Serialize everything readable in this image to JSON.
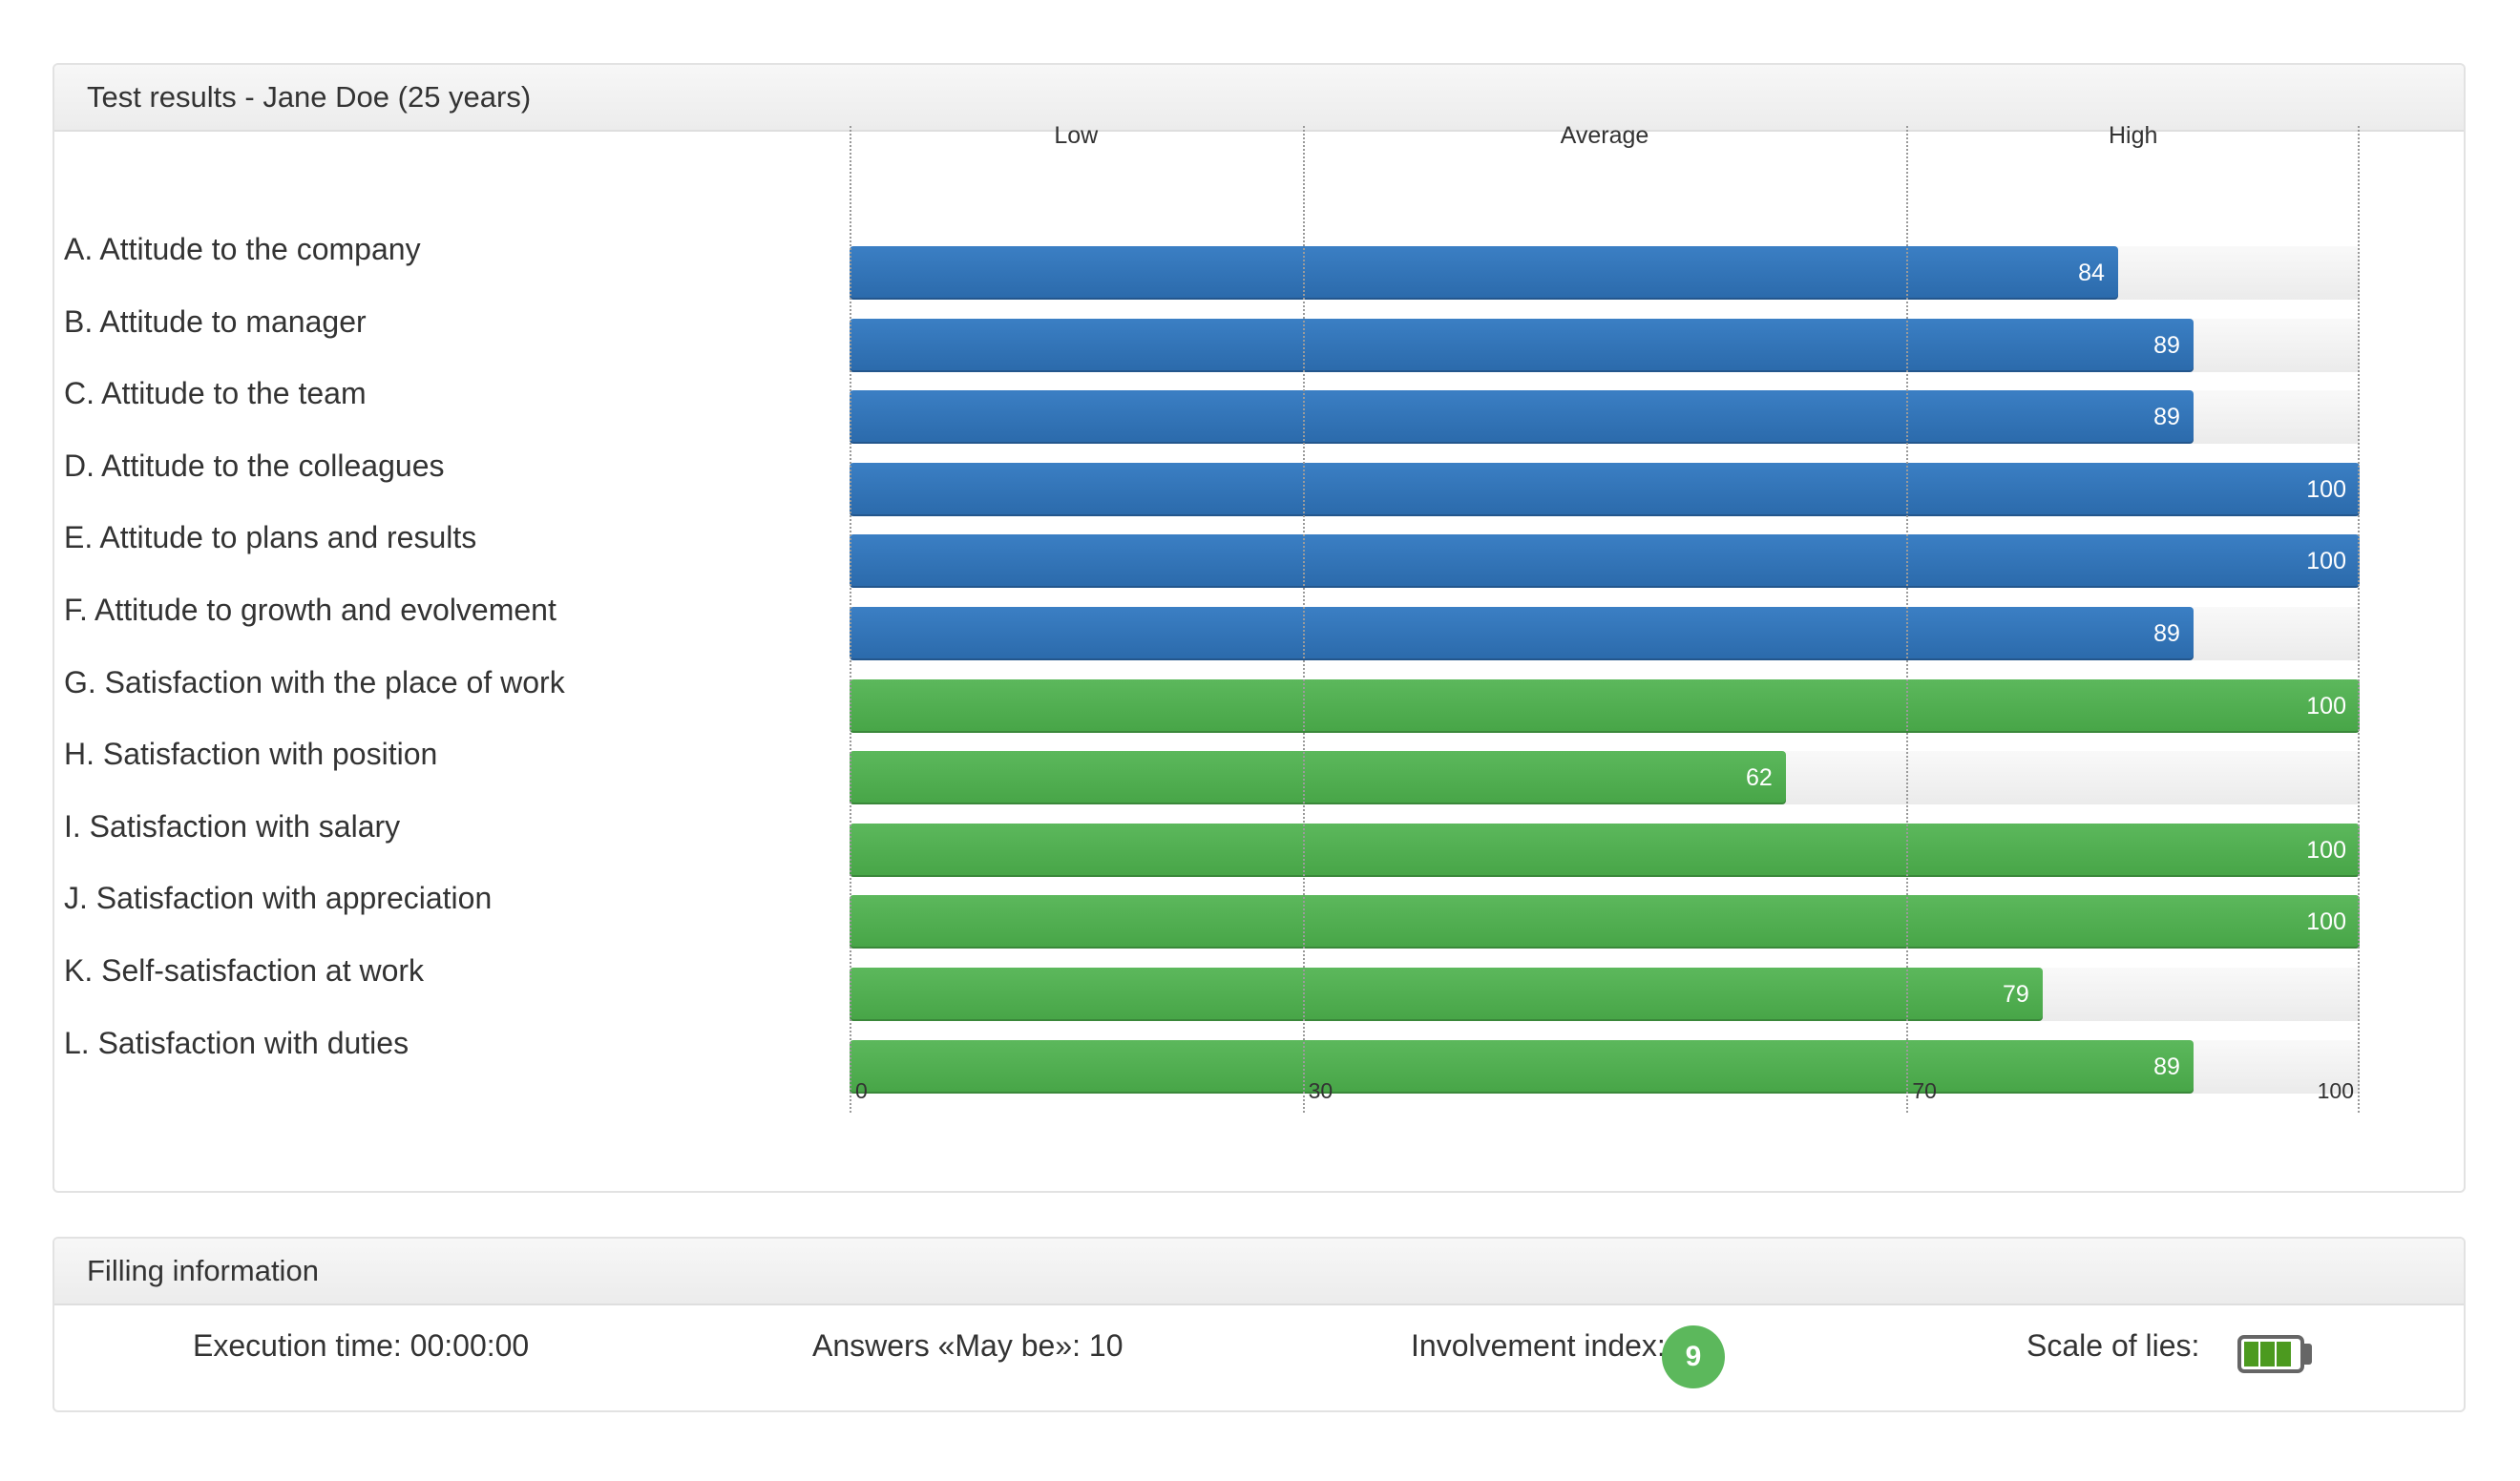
{
  "results": {
    "title": "Test results - Jane Doe (25 years)",
    "zones": [
      "Low",
      "Average",
      "High"
    ],
    "axis_ticks": [
      "0",
      "30",
      "70",
      "100"
    ],
    "rows": [
      {
        "label": "A. Attitude to the company",
        "value": 84,
        "display": "84",
        "color": "blue"
      },
      {
        "label": "B. Attitude to manager",
        "value": 89,
        "display": "89",
        "color": "blue"
      },
      {
        "label": "C. Attitude to the team",
        "value": 89,
        "display": "89",
        "color": "blue"
      },
      {
        "label": "D. Attitude to the colleagues",
        "value": 100,
        "display": "100",
        "color": "blue"
      },
      {
        "label": "E. Attitude to plans and results",
        "value": 100,
        "display": "100",
        "color": "blue"
      },
      {
        "label": "F. Attitude to growth and evolvement",
        "value": 89,
        "display": "89",
        "color": "blue"
      },
      {
        "label": "G. Satisfaction with the place of work",
        "value": 100,
        "display": "100",
        "color": "green"
      },
      {
        "label": "H. Satisfaction with position",
        "value": 62,
        "display": "62",
        "color": "green"
      },
      {
        "label": "I. Satisfaction with salary",
        "value": 100,
        "display": "100",
        "color": "green"
      },
      {
        "label": "J. Satisfaction with appreciation",
        "value": 100,
        "display": "100",
        "color": "green"
      },
      {
        "label": "K. Self-satisfaction at work",
        "value": 79,
        "display": "79",
        "color": "green"
      },
      {
        "label": "L. Satisfaction with duties",
        "value": 89,
        "display": "89",
        "color": "green"
      }
    ]
  },
  "filling": {
    "title": "Filling information",
    "execution_time": "Execution time: 00:00:00",
    "answers_maybe": "Answers «May be»: 10",
    "involvement_label": "Involvement index:",
    "involvement_value": "9",
    "scale_of_lies_label": "Scale of lies:",
    "scale_of_lies_level": 0.75
  },
  "colors": {
    "blue": "#2f72b8",
    "green": "#52ae52",
    "badge": "#5cb85c",
    "battery_fill": "#4c9a1f"
  },
  "chart_data": {
    "type": "bar",
    "orientation": "horizontal",
    "title": "Test results - Jane Doe (25 years)",
    "categories": [
      "A. Attitude to the company",
      "B. Attitude to manager",
      "C. Attitude to the team",
      "D. Attitude to the colleagues",
      "E. Attitude to plans and results",
      "F. Attitude to growth and evolvement",
      "G. Satisfaction with the place of work",
      "H. Satisfaction with position",
      "I. Satisfaction with salary",
      "J. Satisfaction with appreciation",
      "K. Self-satisfaction at work",
      "L. Satisfaction with duties"
    ],
    "values": [
      84,
      89,
      89,
      100,
      100,
      89,
      100,
      62,
      100,
      100,
      79,
      89
    ],
    "xlim": [
      0,
      100
    ],
    "ticks": [
      0,
      30,
      70,
      100
    ],
    "zones": [
      {
        "label": "Low",
        "range": [
          0,
          30
        ]
      },
      {
        "label": "Average",
        "range": [
          30,
          70
        ]
      },
      {
        "label": "High",
        "range": [
          70,
          100
        ]
      }
    ],
    "grid": true
  }
}
